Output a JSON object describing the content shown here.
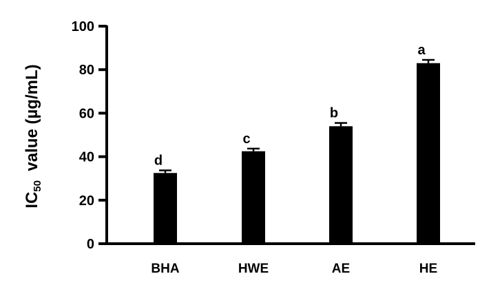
{
  "chart_data": {
    "type": "bar",
    "title": "",
    "xlabel": "",
    "ylabel_prefix": "IC",
    "ylabel_sub": "50",
    "ylabel_suffix": "  value (µg/mL)",
    "ylim": [
      0,
      100
    ],
    "yticks": [
      "0",
      "20",
      "40",
      "60",
      "80",
      "100"
    ],
    "categories": [
      "BHA",
      "HWE",
      "AE",
      "HE"
    ],
    "values": [
      32.5,
      42.5,
      54,
      83
    ],
    "errors": [
      1.2,
      1.2,
      1.5,
      1.5
    ],
    "significance": [
      "d",
      "c",
      "b",
      "a"
    ],
    "bar_color": "#000000",
    "grid": false
  }
}
